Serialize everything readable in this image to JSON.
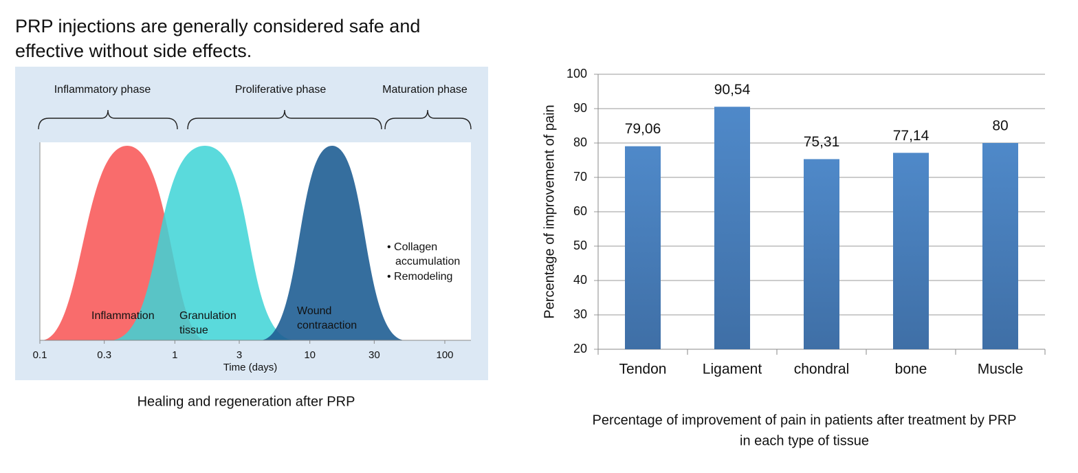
{
  "heading": [
    "PRP injections are generally considered safe and",
    "effective without side effects."
  ],
  "diagram": {
    "phases": [
      "Inflammatory phase",
      "Proliferative phase",
      "Maturation phase"
    ],
    "curve_labels": {
      "inflammation": [
        "Inflammation"
      ],
      "granulation": [
        "Granulation",
        "tissue"
      ],
      "wound": [
        "Wound",
        "contraaction"
      ]
    },
    "notes": [
      "• Collagen",
      "accumulation",
      "• Remodeling"
    ],
    "xscale": "log",
    "xlim": [
      0.1,
      100
    ],
    "xticks": [
      0.1,
      0.3,
      1,
      3,
      10,
      30,
      100
    ],
    "xlabel": "Time (days)",
    "caption": "Healing and regeneration after PRP"
  },
  "chart_data": {
    "type": "bar",
    "ylabel": "Percentage of improvement of pain",
    "caption": [
      "Percentage of improvement of pain in patients after treatment by PRP",
      "in each type of tissue"
    ],
    "categories": [
      "Tendon",
      "Ligament",
      "chondral",
      "bone",
      "Muscle"
    ],
    "values": [
      79.06,
      90.54,
      75.31,
      77.14,
      80
    ],
    "value_labels": [
      "79,06",
      "90,54",
      "75,31",
      "77,14",
      "80"
    ],
    "color": "#4f89c9",
    "ylim": [
      20,
      100
    ],
    "yticks": [
      20,
      30,
      40,
      50,
      60,
      70,
      80,
      90,
      100
    ],
    "grid": true
  }
}
